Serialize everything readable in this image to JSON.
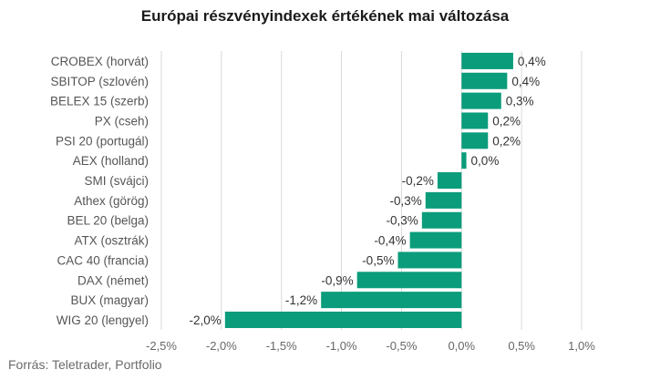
{
  "title": "Európai részvényindexek értékének mai változása",
  "source": "Forrás: Teletrader, Portfolio",
  "colors": {
    "bar": "#0a9c7b",
    "grid": "#d9d9d9",
    "text": "#555555"
  },
  "chart_data": {
    "type": "bar",
    "orientation": "horizontal",
    "title": "Európai részvényindexek értékének mai változása",
    "xlabel": "",
    "ylabel": "",
    "xlim": [
      -2.5,
      1.0
    ],
    "ticks": [
      -2.5,
      -2.0,
      -1.5,
      -1.0,
      -0.5,
      0.0,
      0.5,
      1.0
    ],
    "tick_labels": [
      "-2,5%",
      "-2,0%",
      "-1,5%",
      "-1,0%",
      "-0,5%",
      "0,0%",
      "0,5%",
      "1,0%"
    ],
    "grid": true,
    "categories": [
      "CROBEX (horvát)",
      "SBITOP (szlovén)",
      "BELEX 15 (szerb)",
      "PX (cseh)",
      "PSI 20 (portugál)",
      "AEX (holland)",
      "SMI (svájci)",
      "Athex (görög)",
      "BEL 20 (belga)",
      "ATX (osztrák)",
      "CAC 40 (francia)",
      "DAX (német)",
      "BUX (magyar)",
      "WIG 20 (lengyel)"
    ],
    "values": [
      0.43,
      0.38,
      0.33,
      0.22,
      0.22,
      0.04,
      -0.2,
      -0.3,
      -0.33,
      -0.43,
      -0.53,
      -0.87,
      -1.17,
      -1.97
    ],
    "value_labels": [
      "0,4%",
      "0,4%",
      "0,3%",
      "0,2%",
      "0,2%",
      "0,0%",
      "-0,2%",
      "-0,3%",
      "-0,3%",
      "-0,4%",
      "-0,5%",
      "-0,9%",
      "-1,2%",
      "-2,0%"
    ]
  }
}
